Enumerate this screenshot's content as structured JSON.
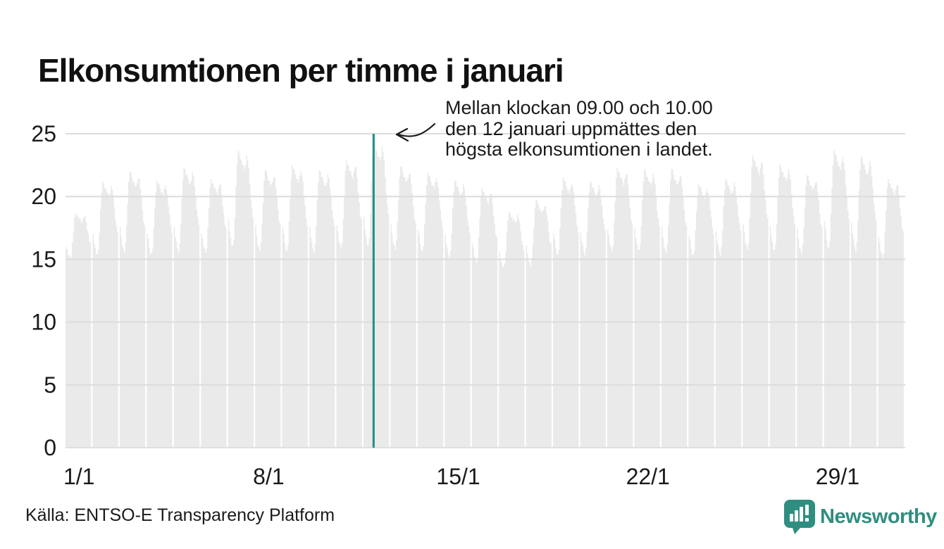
{
  "title": "Elkonsumtionen per timme i januari",
  "annotation": {
    "lines": [
      "Mellan klockan 09.00 och 10.00",
      "den 12 januari uppmättes den",
      "högsta elkonsumtionen i landet."
    ]
  },
  "source": "Källa: ENTSO-E Transparency Platform",
  "brand": {
    "name": "Newsworthy",
    "color": "#2F8E80",
    "icon": "bar-chart-marker-icon"
  },
  "colors": {
    "bar_fill": "#EAEAEA",
    "gridline": "#DCDCDC",
    "baseline": "#DFDFDF",
    "highlight": "#1F8E84",
    "text": "#1A1A1A"
  },
  "chart_data": {
    "type": "bar",
    "title": "Elkonsumtionen per timme i januari",
    "xlabel": "",
    "ylabel": "",
    "ylim": [
      0,
      25
    ],
    "yticks": [
      0,
      5,
      10,
      15,
      20,
      25
    ],
    "xtick_labels": [
      "1/1",
      "8/1",
      "15/1",
      "22/1",
      "29/1"
    ],
    "xtick_days": [
      1,
      8,
      15,
      22,
      29
    ],
    "grid": true,
    "legend": "none",
    "series_name": "Elkonsumtion per timme (hourly electricity consumption)",
    "hours_per_day": 24,
    "daily_profile_normalized": [
      0.3,
      0.2,
      0.11,
      0.05,
      0.02,
      0.1,
      0.34,
      0.62,
      0.86,
      1.0,
      0.97,
      0.93,
      0.89,
      0.86,
      0.83,
      0.81,
      0.86,
      0.93,
      0.9,
      0.8,
      0.66,
      0.52,
      0.4,
      0.33
    ],
    "days": [
      {
        "date": "1/1",
        "min": 15.0,
        "peak": 18.7
      },
      {
        "date": "2/1",
        "min": 15.2,
        "peak": 21.2
      },
      {
        "date": "3/1",
        "min": 15.5,
        "peak": 22.0
      },
      {
        "date": "4/1",
        "min": 15.3,
        "peak": 21.3
      },
      {
        "date": "5/1",
        "min": 15.5,
        "peak": 22.3
      },
      {
        "date": "6/1",
        "min": 15.4,
        "peak": 21.4
      },
      {
        "date": "7/1",
        "min": 15.8,
        "peak": 23.7
      },
      {
        "date": "8/1",
        "min": 15.6,
        "peak": 22.1
      },
      {
        "date": "9/1",
        "min": 15.5,
        "peak": 22.5
      },
      {
        "date": "10/1",
        "min": 15.5,
        "peak": 22.1
      },
      {
        "date": "11/1",
        "min": 15.7,
        "peak": 22.9
      },
      {
        "date": "12/1",
        "min": 15.8,
        "peak": 24.5
      },
      {
        "date": "13/1",
        "min": 15.7,
        "peak": 22.4
      },
      {
        "date": "14/1",
        "min": 15.5,
        "peak": 21.9
      },
      {
        "date": "15/1",
        "min": 15.0,
        "peak": 21.3
      },
      {
        "date": "16/1",
        "min": 14.6,
        "peak": 20.7
      },
      {
        "date": "17/1",
        "min": 14.2,
        "peak": 18.8
      },
      {
        "date": "18/1",
        "min": 14.4,
        "peak": 19.7
      },
      {
        "date": "19/1",
        "min": 15.2,
        "peak": 21.5
      },
      {
        "date": "20/1",
        "min": 15.3,
        "peak": 21.2
      },
      {
        "date": "21/1",
        "min": 15.5,
        "peak": 22.3
      },
      {
        "date": "22/1",
        "min": 15.5,
        "peak": 22.2
      },
      {
        "date": "23/1",
        "min": 15.4,
        "peak": 22.2
      },
      {
        "date": "24/1",
        "min": 15.2,
        "peak": 21.0
      },
      {
        "date": "25/1",
        "min": 15.3,
        "peak": 21.4
      },
      {
        "date": "26/1",
        "min": 15.6,
        "peak": 23.3
      },
      {
        "date": "27/1",
        "min": 15.5,
        "peak": 22.6
      },
      {
        "date": "28/1",
        "min": 15.4,
        "peak": 21.7
      },
      {
        "date": "29/1",
        "min": 15.7,
        "peak": 23.7
      },
      {
        "date": "30/1",
        "min": 15.6,
        "peak": 23.2
      },
      {
        "date": "31/1",
        "min": 15.0,
        "peak": 21.4
      }
    ],
    "highlight": {
      "day": 12,
      "hour": 9,
      "value": 24.5
    }
  }
}
